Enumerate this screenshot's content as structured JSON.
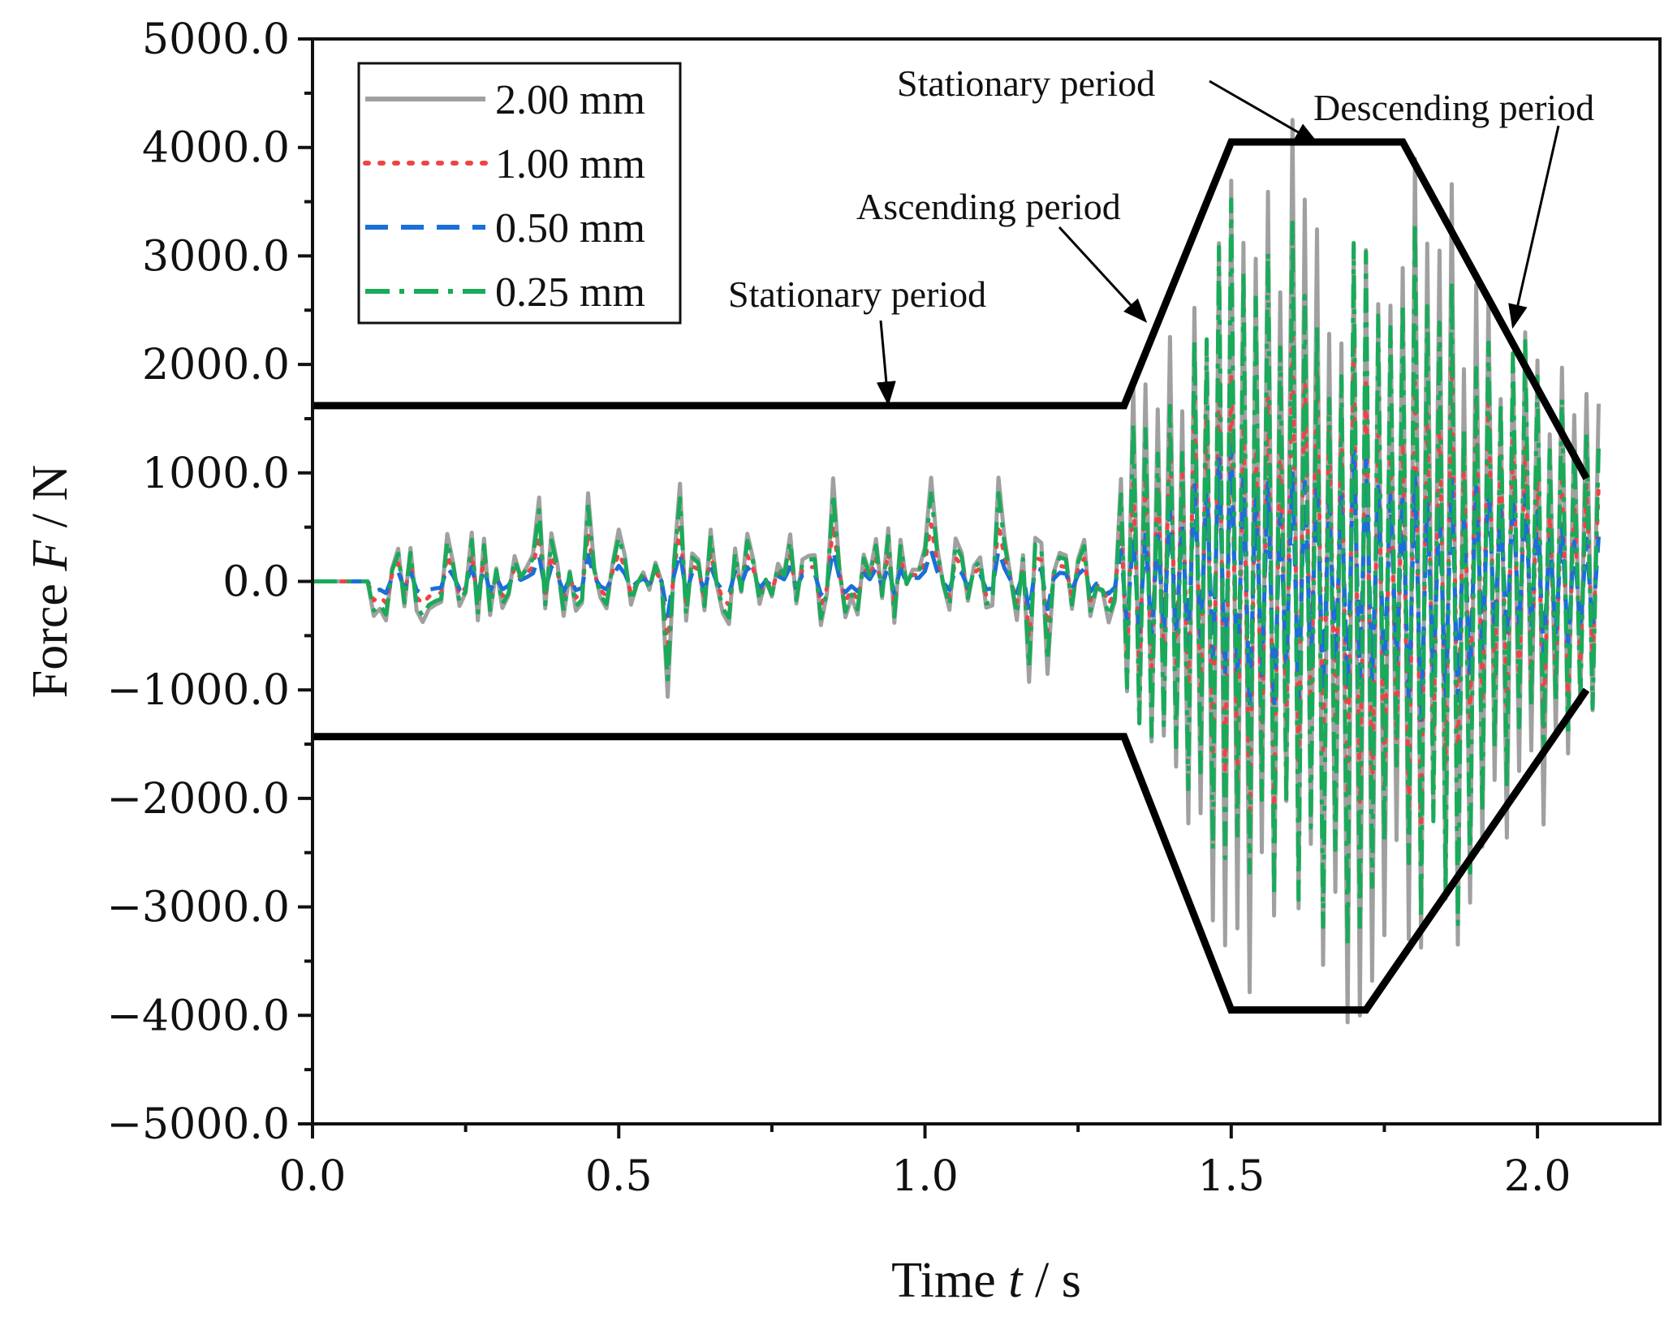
{
  "chart_data": {
    "type": "line",
    "xlabel": "Time t / s",
    "xlabel_parts": [
      "Time ",
      "t",
      " / s"
    ],
    "ylabel": "Force F / N",
    "ylabel_parts": [
      "Force ",
      "F",
      " / N"
    ],
    "xlim": [
      0.0,
      2.2
    ],
    "ylim": [
      -5000,
      5000
    ],
    "xticks": [
      0.0,
      0.5,
      1.0,
      1.5,
      2.0
    ],
    "xtick_labels": [
      "0.0",
      "0.5",
      "1.0",
      "1.5",
      "2.0"
    ],
    "yticks": [
      5000,
      4000,
      3000,
      2000,
      1000,
      0,
      -1000,
      -2000,
      -3000,
      -4000,
      -5000
    ],
    "ytick_labels": [
      "5000.0",
      "4000.0",
      "3000.0",
      "2000.0",
      "1000.0",
      "0.0",
      "−1000.0",
      "−2000.0",
      "−3000.0",
      "−4000.0",
      "−5000.0"
    ],
    "legend_position": "top-left",
    "series": [
      {
        "name": "2.00 mm",
        "color": "#a0a0a0",
        "style": "solid",
        "scale": 1.0
      },
      {
        "name": "1.00 mm",
        "color": "#ee4444",
        "style": "dotted",
        "scale": 0.55
      },
      {
        "name": "0.50 mm",
        "color": "#1a6fd8",
        "style": "dashed",
        "scale": 0.3
      },
      {
        "name": "0.25 mm",
        "color": "#1aaa5a",
        "style": "dashdot",
        "scale": 0.85
      }
    ],
    "envelope": {
      "upper": [
        [
          0.0,
          1620
        ],
        [
          1.325,
          1620
        ],
        [
          1.5,
          4050
        ],
        [
          1.78,
          4050
        ],
        [
          2.08,
          950
        ]
      ],
      "lower": [
        [
          0.0,
          -1430
        ],
        [
          1.325,
          -1430
        ],
        [
          1.5,
          -3950
        ],
        [
          1.72,
          -3950
        ],
        [
          2.08,
          -1000
        ]
      ]
    },
    "annotations": [
      {
        "text": "Stationary period",
        "target": [
          0.94,
          1640
        ]
      },
      {
        "text": "Ascending period",
        "target": [
          1.36,
          2400
        ]
      },
      {
        "text": "Stationary period",
        "target": [
          1.64,
          4040
        ]
      },
      {
        "text": "Descending period",
        "target": [
          1.96,
          2350
        ]
      }
    ]
  }
}
